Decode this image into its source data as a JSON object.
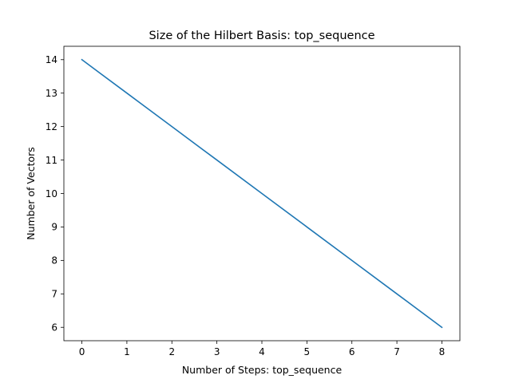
{
  "chart_data": {
    "type": "line",
    "title": "Size of the Hilbert Basis: top_sequence",
    "xlabel": "Number of Steps: top_sequence",
    "ylabel": "Number of Vectors",
    "x": [
      0,
      1,
      2,
      3,
      4,
      5,
      6,
      7,
      8
    ],
    "series": [
      {
        "values": [
          14,
          13,
          12,
          11,
          10,
          9,
          8,
          7,
          6
        ],
        "color": "#1f77b4"
      }
    ],
    "xlim": [
      -0.4,
      8.4
    ],
    "ylim": [
      5.6,
      14.4
    ],
    "xticks": [
      0,
      1,
      2,
      3,
      4,
      5,
      6,
      7,
      8
    ],
    "yticks": [
      6,
      7,
      8,
      9,
      10,
      11,
      12,
      13,
      14
    ],
    "grid": false,
    "legend": "none"
  }
}
